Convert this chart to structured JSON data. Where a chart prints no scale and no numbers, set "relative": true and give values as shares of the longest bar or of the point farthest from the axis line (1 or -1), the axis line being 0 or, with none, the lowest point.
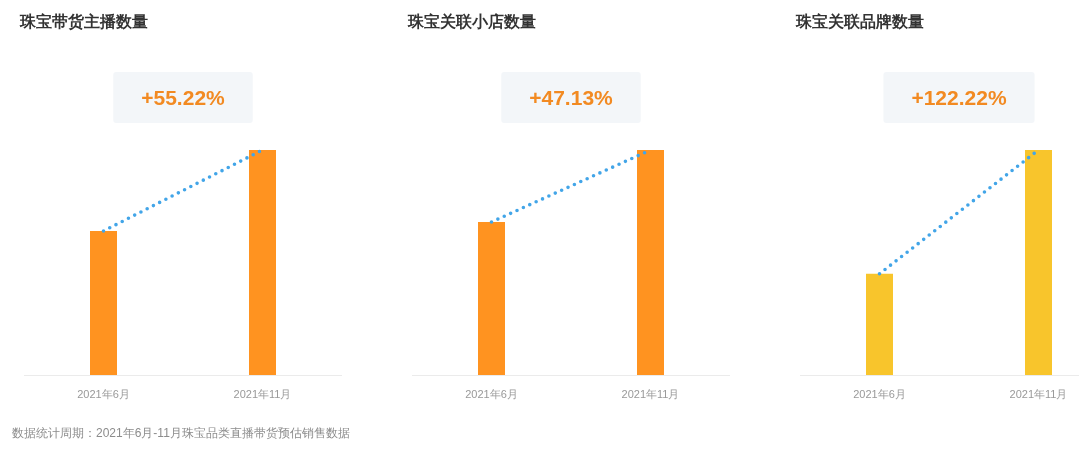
{
  "chart_data": [
    {
      "type": "bar",
      "title": "珠宝带货主播数量",
      "categories": [
        "2021年6月",
        "2021年11月"
      ],
      "relative": true,
      "series": [
        {
          "type": "bar",
          "color": "#ff9320",
          "values": [
            0.64,
            1
          ]
        },
        {
          "type": "line",
          "color": "#42a5e8",
          "line_style": "dotted",
          "values": [
            0.64,
            1
          ]
        }
      ],
      "annotations": [
        "+55.22%"
      ]
    },
    {
      "type": "bar",
      "title": "珠宝关联小店数量",
      "categories": [
        "2021年6月",
        "2021年11月"
      ],
      "relative": true,
      "series": [
        {
          "type": "bar",
          "color": "#ff9320",
          "values": [
            0.68,
            1
          ]
        },
        {
          "type": "line",
          "color": "#42a5e8",
          "line_style": "dotted",
          "values": [
            0.68,
            1
          ]
        }
      ],
      "annotations": [
        "+47.13%"
      ]
    },
    {
      "type": "bar",
      "title": "珠宝关联品牌数量",
      "categories": [
        "2021年6月",
        "2021年11月"
      ],
      "relative": true,
      "series": [
        {
          "type": "bar",
          "color": "#f8c52c",
          "values": [
            0.45,
            1
          ]
        },
        {
          "type": "line",
          "color": "#42a5e8",
          "line_style": "dotted",
          "values": [
            0.45,
            1
          ]
        }
      ],
      "annotations": [
        "+122.22%"
      ]
    },
    {
      "type": "other",
      "annotations": [
        "数据统计周期：2021年6月-11月珠宝品类直播带货预估销售数据"
      ]
    }
  ]
}
